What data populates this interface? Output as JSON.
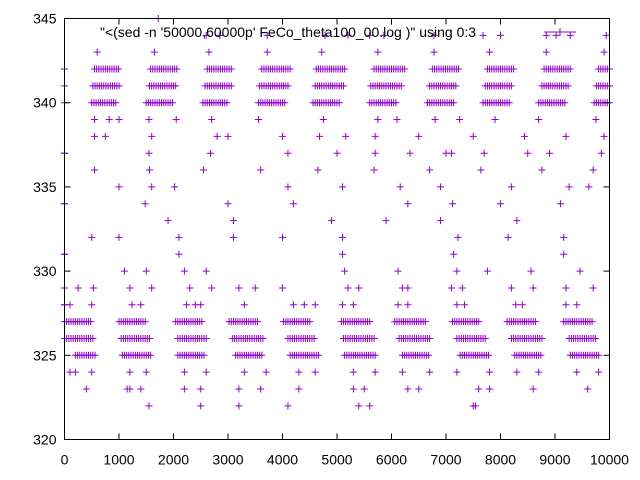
{
  "chart_data": {
    "type": "scatter",
    "title": "",
    "xlabel": "",
    "ylabel": "",
    "xlim": [
      0,
      10000
    ],
    "ylim": [
      320,
      345
    ],
    "xticks": [
      0,
      1000,
      2000,
      3000,
      4000,
      5000,
      6000,
      7000,
      8000,
      9000,
      10000
    ],
    "yticks": [
      320,
      325,
      330,
      335,
      340,
      345
    ],
    "grid": false,
    "legend_position": "top-right",
    "marker": "plus",
    "series": [
      {
        "name": "\"<(sed -n '50000,60000p' FeCo_theta100_00.log )\" using 0:3",
        "color": "#9400d3",
        "dense_bands": [
          {
            "y": 342,
            "x_ranges": [
              [
                550,
                1000
              ],
              [
                1580,
                2080
              ],
              [
                2620,
                3080
              ],
              [
                3620,
                4160
              ],
              [
                4620,
                5140
              ],
              [
                5680,
                6240
              ],
              [
                6750,
                7260
              ],
              [
                7760,
                8240
              ],
              [
                8800,
                9300
              ],
              [
                9800,
                10000
              ]
            ]
          },
          {
            "y": 341,
            "x_ranges": [
              [
                520,
                1000
              ],
              [
                1560,
                2060
              ],
              [
                2580,
                3060
              ],
              [
                3580,
                4100
              ],
              [
                4600,
                5120
              ],
              [
                5620,
                6180
              ],
              [
                6700,
                7200
              ],
              [
                7720,
                8200
              ],
              [
                8760,
                9260
              ],
              [
                9760,
                10000
              ]
            ]
          },
          {
            "y": 340,
            "x_ranges": [
              [
                500,
                940
              ],
              [
                1500,
                2000
              ],
              [
                2540,
                3000
              ],
              [
                3560,
                4060
              ],
              [
                4560,
                5060
              ],
              [
                5600,
                6100
              ],
              [
                6660,
                7160
              ],
              [
                7680,
                8160
              ],
              [
                8700,
                9200
              ],
              [
                9720,
                10000
              ]
            ]
          },
          {
            "y": 327,
            "x_ranges": [
              [
                0,
                500
              ],
              [
                1000,
                1480
              ],
              [
                2040,
                2520
              ],
              [
                3020,
                3540
              ],
              [
                4020,
                4500
              ],
              [
                5080,
                5600
              ],
              [
                6060,
                6620
              ],
              [
                7120,
                7600
              ],
              [
                8120,
                8640
              ],
              [
                9160,
                9700
              ]
            ]
          },
          {
            "y": 326,
            "x_ranges": [
              [
                0,
                520
              ],
              [
                1040,
                1560
              ],
              [
                2080,
                2600
              ],
              [
                3080,
                3640
              ],
              [
                4100,
                4600
              ],
              [
                5120,
                5680
              ],
              [
                6140,
                6700
              ],
              [
                7200,
                7740
              ],
              [
                8200,
                8760
              ],
              [
                9260,
                9740
              ]
            ]
          },
          {
            "y": 325,
            "x_ranges": [
              [
                200,
                560
              ],
              [
                1060,
                1580
              ],
              [
                2080,
                2580
              ],
              [
                3140,
                3640
              ],
              [
                4140,
                4660
              ],
              [
                5140,
                5720
              ],
              [
                6200,
                6700
              ],
              [
                7260,
                7780
              ],
              [
                8260,
                8740
              ],
              [
                9280,
                9800
              ]
            ]
          }
        ],
        "sparse_points": [
          [
            0,
            342
          ],
          [
            0,
            341
          ],
          [
            0,
            340
          ],
          [
            0,
            337
          ],
          [
            0,
            334
          ],
          [
            0,
            331
          ],
          [
            0,
            329
          ],
          [
            0,
            328
          ],
          [
            600,
            343
          ],
          [
            1650,
            343
          ],
          [
            2650,
            343
          ],
          [
            3720,
            343
          ],
          [
            4720,
            343
          ],
          [
            5750,
            343
          ],
          [
            6780,
            343
          ],
          [
            7800,
            343
          ],
          [
            8840,
            343
          ],
          [
            9900,
            343
          ],
          [
            1720,
            345
          ],
          [
            2600,
            344
          ],
          [
            2850,
            344
          ],
          [
            3720,
            344
          ],
          [
            4780,
            344
          ],
          [
            5200,
            344
          ],
          [
            5600,
            344
          ],
          [
            5860,
            344
          ],
          [
            6780,
            344
          ],
          [
            7680,
            344
          ],
          [
            8000,
            344
          ],
          [
            8840,
            344
          ],
          [
            9020,
            344
          ],
          [
            9280,
            344
          ],
          [
            9940,
            344
          ],
          [
            550,
            339
          ],
          [
            820,
            339
          ],
          [
            1000,
            339
          ],
          [
            1550,
            339
          ],
          [
            2050,
            339
          ],
          [
            2700,
            339
          ],
          [
            3560,
            339
          ],
          [
            4750,
            339
          ],
          [
            5750,
            339
          ],
          [
            6100,
            339
          ],
          [
            6800,
            339
          ],
          [
            7250,
            339
          ],
          [
            7900,
            339
          ],
          [
            8700,
            339
          ],
          [
            9750,
            339
          ],
          [
            550,
            338
          ],
          [
            750,
            338
          ],
          [
            1600,
            338
          ],
          [
            2800,
            338
          ],
          [
            3000,
            338
          ],
          [
            4000,
            338
          ],
          [
            4680,
            338
          ],
          [
            5160,
            338
          ],
          [
            5700,
            338
          ],
          [
            6500,
            338
          ],
          [
            7500,
            338
          ],
          [
            8440,
            338
          ],
          [
            9200,
            338
          ],
          [
            9900,
            338
          ],
          [
            0,
            337
          ],
          [
            1550,
            337
          ],
          [
            2680,
            337
          ],
          [
            4100,
            337
          ],
          [
            5000,
            337
          ],
          [
            5700,
            337
          ],
          [
            6340,
            337
          ],
          [
            7000,
            337
          ],
          [
            7100,
            337
          ],
          [
            7700,
            337
          ],
          [
            8500,
            337
          ],
          [
            8900,
            337
          ],
          [
            9850,
            337
          ],
          [
            550,
            336
          ],
          [
            1560,
            336
          ],
          [
            2550,
            336
          ],
          [
            3600,
            336
          ],
          [
            4650,
            336
          ],
          [
            5680,
            336
          ],
          [
            6700,
            336
          ],
          [
            7640,
            336
          ],
          [
            8760,
            336
          ],
          [
            9700,
            336
          ],
          [
            1000,
            335
          ],
          [
            1600,
            335
          ],
          [
            2020,
            335
          ],
          [
            4100,
            335
          ],
          [
            5100,
            335
          ],
          [
            6160,
            335
          ],
          [
            6900,
            335
          ],
          [
            8200,
            335
          ],
          [
            9260,
            335
          ],
          [
            9620,
            335
          ],
          [
            0,
            334
          ],
          [
            1480,
            334
          ],
          [
            3000,
            334
          ],
          [
            4200,
            334
          ],
          [
            6300,
            334
          ],
          [
            7120,
            334
          ],
          [
            8000,
            334
          ],
          [
            9100,
            334
          ],
          [
            1900,
            333
          ],
          [
            3100,
            333
          ],
          [
            4900,
            333
          ],
          [
            5900,
            333
          ],
          [
            6900,
            333
          ],
          [
            8300,
            333
          ],
          [
            500,
            332
          ],
          [
            1000,
            332
          ],
          [
            2100,
            332
          ],
          [
            3100,
            332
          ],
          [
            4000,
            332
          ],
          [
            5100,
            332
          ],
          [
            7220,
            332
          ],
          [
            8140,
            332
          ],
          [
            9160,
            332
          ],
          [
            0,
            331
          ],
          [
            2100,
            331
          ],
          [
            5100,
            331
          ],
          [
            7140,
            331
          ],
          [
            9160,
            331
          ],
          [
            1100,
            330
          ],
          [
            1500,
            330
          ],
          [
            2200,
            330
          ],
          [
            2600,
            330
          ],
          [
            5140,
            330
          ],
          [
            6120,
            330
          ],
          [
            7200,
            330
          ],
          [
            7760,
            330
          ],
          [
            8560,
            330
          ],
          [
            9460,
            330
          ],
          [
            0,
            329
          ],
          [
            250,
            329
          ],
          [
            530,
            329
          ],
          [
            1200,
            329
          ],
          [
            1600,
            329
          ],
          [
            2300,
            329
          ],
          [
            2700,
            329
          ],
          [
            3200,
            329
          ],
          [
            3500,
            329
          ],
          [
            4000,
            329
          ],
          [
            5200,
            329
          ],
          [
            5400,
            329
          ],
          [
            6200,
            329
          ],
          [
            6300,
            329
          ],
          [
            7100,
            329
          ],
          [
            7300,
            329
          ],
          [
            8200,
            329
          ],
          [
            8600,
            329
          ],
          [
            9200,
            329
          ],
          [
            9700,
            329
          ],
          [
            0,
            328
          ],
          [
            100,
            328
          ],
          [
            500,
            328
          ],
          [
            1240,
            328
          ],
          [
            1400,
            328
          ],
          [
            2240,
            328
          ],
          [
            2400,
            328
          ],
          [
            2500,
            328
          ],
          [
            3300,
            328
          ],
          [
            4200,
            328
          ],
          [
            4400,
            328
          ],
          [
            4600,
            328
          ],
          [
            5100,
            328
          ],
          [
            5300,
            328
          ],
          [
            6120,
            328
          ],
          [
            6300,
            328
          ],
          [
            7200,
            328
          ],
          [
            7340,
            328
          ],
          [
            8280,
            328
          ],
          [
            8400,
            328
          ],
          [
            9200,
            328
          ],
          [
            9400,
            328
          ],
          [
            100,
            324
          ],
          [
            200,
            324
          ],
          [
            500,
            324
          ],
          [
            1200,
            324
          ],
          [
            1500,
            324
          ],
          [
            2200,
            324
          ],
          [
            2600,
            324
          ],
          [
            3300,
            324
          ],
          [
            3700,
            324
          ],
          [
            4300,
            324
          ],
          [
            4600,
            324
          ],
          [
            5300,
            324
          ],
          [
            5700,
            324
          ],
          [
            6200,
            324
          ],
          [
            6700,
            324
          ],
          [
            7200,
            324
          ],
          [
            7800,
            324
          ],
          [
            8300,
            324
          ],
          [
            8700,
            324
          ],
          [
            9400,
            324
          ],
          [
            9800,
            324
          ],
          [
            400,
            323
          ],
          [
            1150,
            323
          ],
          [
            1200,
            323
          ],
          [
            1400,
            323
          ],
          [
            2200,
            323
          ],
          [
            2500,
            323
          ],
          [
            3200,
            323
          ],
          [
            3600,
            323
          ],
          [
            4300,
            323
          ],
          [
            5300,
            323
          ],
          [
            5500,
            323
          ],
          [
            6300,
            323
          ],
          [
            6500,
            323
          ],
          [
            7600,
            323
          ],
          [
            7800,
            323
          ],
          [
            8600,
            323
          ],
          [
            9600,
            323
          ],
          [
            1550,
            322
          ],
          [
            2500,
            322
          ],
          [
            3200,
            322
          ],
          [
            4100,
            322
          ],
          [
            5400,
            322
          ],
          [
            5600,
            322
          ],
          [
            7500,
            322
          ],
          [
            7540,
            322
          ]
        ]
      }
    ]
  }
}
